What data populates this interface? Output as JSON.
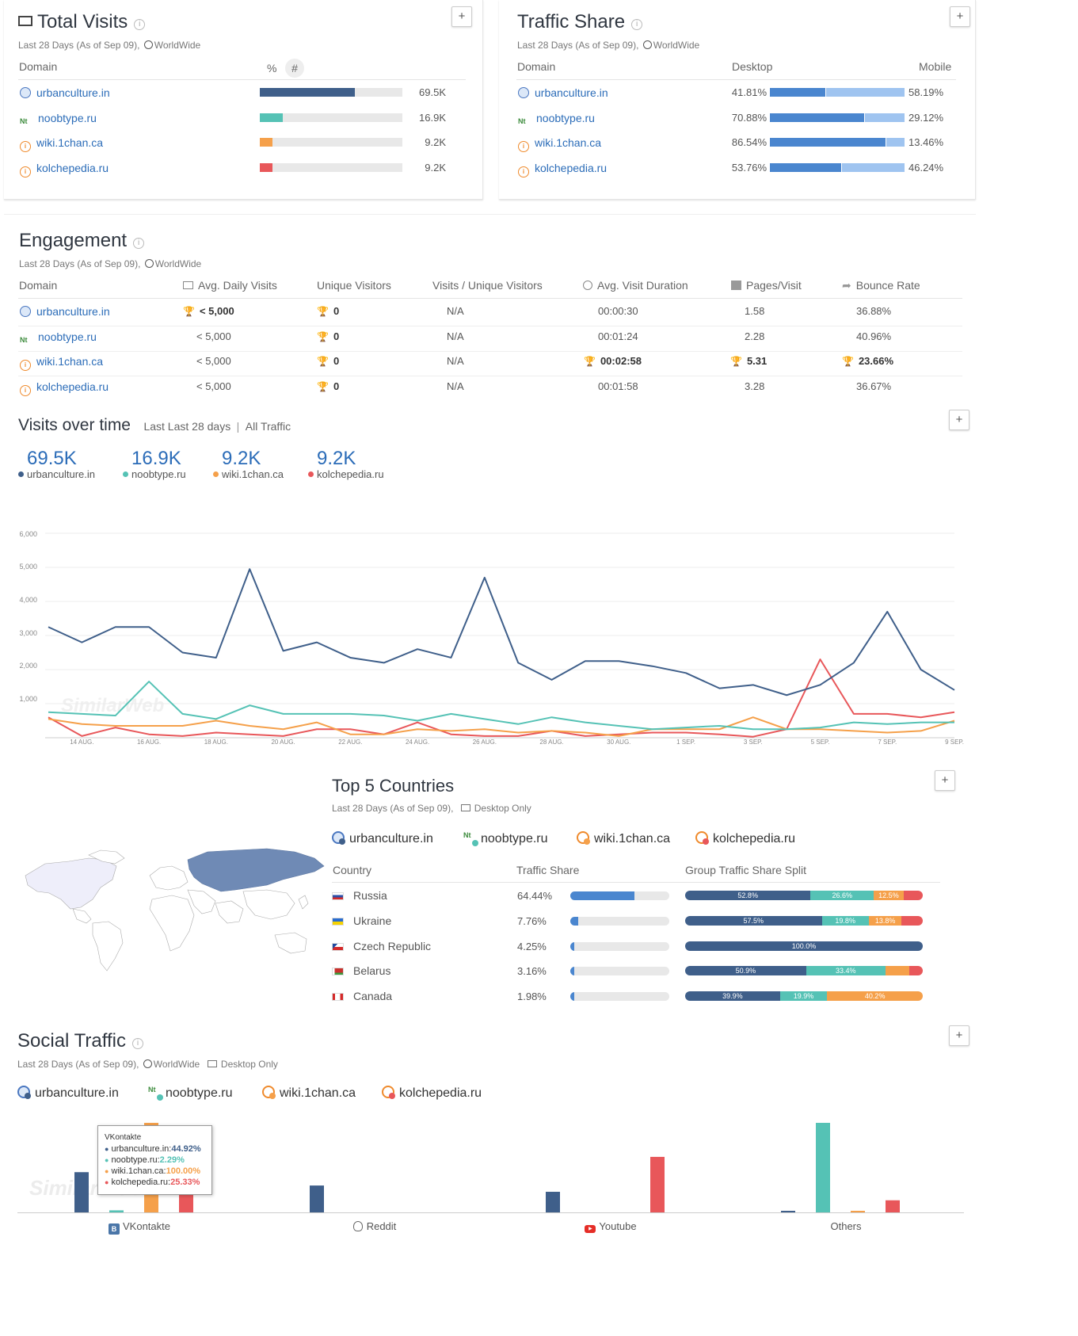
{
  "colors": {
    "urban": "#3f5f8a",
    "noob": "#55c2b5",
    "wiki": "#f5a04a",
    "kolche": "#e8575a",
    "desktop": "#4a86cf",
    "mobile": "#9fc4f0",
    "link": "#2b6cb8"
  },
  "total_visits": {
    "title": "Total Visits",
    "subtitle": "Last 28 Days (As of Sep 09),",
    "region": "WorldWide",
    "col_domain": "Domain",
    "col_pct": "%",
    "col_num": "#",
    "rows": [
      {
        "domain": "urbanculture.in",
        "value": "69.5K",
        "share": 0.667
      },
      {
        "domain": "noobtype.ru",
        "value": "16.9K",
        "share": 0.162
      },
      {
        "domain": "wiki.1chan.ca",
        "value": "9.2K",
        "share": 0.088
      },
      {
        "domain": "kolchepedia.ru",
        "value": "9.2K",
        "share": 0.088
      }
    ]
  },
  "traffic_share": {
    "title": "Traffic Share",
    "subtitle": "Last 28 Days (As of Sep 09),",
    "region": "WorldWide",
    "col_domain": "Domain",
    "col_desktop": "Desktop",
    "col_mobile": "Mobile",
    "rows": [
      {
        "domain": "urbanculture.in",
        "desktop": "41.81%",
        "mobile": "58.19%",
        "desktop_share": 0.4181
      },
      {
        "domain": "noobtype.ru",
        "desktop": "70.88%",
        "mobile": "29.12%",
        "desktop_share": 0.7088
      },
      {
        "domain": "wiki.1chan.ca",
        "desktop": "86.54%",
        "mobile": "13.46%",
        "desktop_share": 0.8654
      },
      {
        "domain": "kolchepedia.ru",
        "desktop": "53.76%",
        "mobile": "46.24%",
        "desktop_share": 0.5376
      }
    ]
  },
  "engagement": {
    "title": "Engagement",
    "subtitle": "Last 28 Days (As of Sep 09),",
    "region": "WorldWide",
    "cols": [
      "Domain",
      "Avg. Daily Visits",
      "Unique Visitors",
      "Visits / Unique Visitors",
      "Avg. Visit Duration",
      "Pages/Visit",
      "Bounce Rate"
    ],
    "rows": [
      {
        "domain": "urbanculture.in",
        "daily": "< 5,000",
        "unique": "0",
        "ratio": "N/A",
        "duration": "00:00:30",
        "pages": "1.58",
        "bounce": "36.88%"
      },
      {
        "domain": "noobtype.ru",
        "daily": "< 5,000",
        "unique": "0",
        "ratio": "N/A",
        "duration": "00:01:24",
        "pages": "2.28",
        "bounce": "40.96%"
      },
      {
        "domain": "wiki.1chan.ca",
        "daily": "< 5,000",
        "unique": "0",
        "ratio": "N/A",
        "duration": "00:02:58",
        "pages": "5.31",
        "bounce": "23.66%"
      },
      {
        "domain": "kolchepedia.ru",
        "daily": "< 5,000",
        "unique": "0",
        "ratio": "N/A",
        "duration": "00:01:58",
        "pages": "3.28",
        "bounce": "36.67%"
      }
    ]
  },
  "visits_over_time": {
    "title": "Visits over time",
    "period": "Last Last 28 days",
    "separator": "|",
    "traffic": "All Traffic",
    "totals": [
      {
        "value": "69.5K",
        "domain": "urbanculture.in"
      },
      {
        "value": "16.9K",
        "domain": "noobtype.ru"
      },
      {
        "value": "9.2K",
        "domain": "wiki.1chan.ca"
      },
      {
        "value": "9.2K",
        "domain": "kolchepedia.ru"
      }
    ],
    "watermark": "SimilarWeb"
  },
  "chart_data": [
    {
      "type": "line",
      "x": [
        "13 AUG",
        "14 AUG",
        "15 AUG",
        "16 AUG",
        "17 AUG",
        "18 AUG",
        "19 AUG",
        "20 AUG",
        "21 AUG",
        "22 AUG",
        "23 AUG",
        "24 AUG",
        "25 AUG",
        "26 AUG",
        "27 AUG",
        "28 AUG",
        "29 AUG",
        "30 AUG",
        "31 AUG",
        "1 SEP",
        "2 SEP",
        "3 SEP",
        "4 SEP",
        "5 SEP",
        "6 SEP",
        "7 SEP",
        "8 SEP",
        "9 SEP"
      ],
      "xticks": [
        "14 AUG.",
        "16 AUG.",
        "18 AUG.",
        "20 AUG.",
        "22 AUG.",
        "24 AUG.",
        "26 AUG.",
        "28 AUG.",
        "30 AUG.",
        "1 SEP.",
        "3 SEP.",
        "5 SEP.",
        "7 SEP.",
        "9 SEP."
      ],
      "yticks": [
        "6,000",
        "5,000",
        "4,000",
        "3,000",
        "2,000",
        "1,000"
      ],
      "ylim": [
        0,
        6000
      ],
      "series": [
        {
          "name": "urbanculture.in",
          "values": [
            3250,
            2800,
            3250,
            3250,
            2500,
            2350,
            4950,
            2550,
            2800,
            2350,
            2200,
            2600,
            2350,
            4700,
            2200,
            1700,
            2250,
            2250,
            2100,
            1900,
            1450,
            1550,
            1250,
            1550,
            2200,
            3700,
            2000,
            1400
          ]
        },
        {
          "name": "noobtype.ru",
          "values": [
            750,
            700,
            650,
            1650,
            700,
            550,
            950,
            700,
            700,
            700,
            650,
            500,
            700,
            550,
            400,
            600,
            450,
            350,
            250,
            300,
            350,
            250,
            250,
            300,
            450,
            400,
            450,
            450
          ]
        },
        {
          "name": "wiki.1chan.ca",
          "values": [
            550,
            400,
            350,
            350,
            350,
            500,
            350,
            250,
            450,
            100,
            100,
            250,
            200,
            250,
            150,
            200,
            150,
            50,
            250,
            250,
            250,
            600,
            250,
            250,
            200,
            150,
            200,
            500
          ]
        },
        {
          "name": "kolchepedia.ru",
          "values": [
            600,
            50,
            300,
            100,
            50,
            150,
            100,
            50,
            250,
            250,
            100,
            450,
            100,
            50,
            50,
            200,
            50,
            100,
            150,
            150,
            100,
            30,
            250,
            2300,
            700,
            700,
            600,
            750
          ]
        }
      ]
    },
    {
      "type": "bar",
      "categories": [
        "VKontakte",
        "Reddit",
        "Youtube",
        "Others"
      ],
      "series": [
        {
          "name": "urbanculture.in",
          "values": [
            44.92,
            30.0,
            23.0,
            1.5
          ]
        },
        {
          "name": "noobtype.ru",
          "values": [
            2.29,
            0,
            0,
            100.0
          ]
        },
        {
          "name": "wiki.1chan.ca",
          "values": [
            100.0,
            0,
            0,
            1.5
          ]
        },
        {
          "name": "kolchepedia.ru",
          "values": [
            25.33,
            0,
            62.0,
            13.5
          ]
        }
      ],
      "ylim": [
        0,
        100
      ]
    }
  ],
  "countries": {
    "title": "Top 5 Countries",
    "subtitle": "Last 28 Days (As of Sep 09),",
    "device": "Desktop Only",
    "domains": [
      "urbanculture.in",
      "noobtype.ru",
      "wiki.1chan.ca",
      "kolchepedia.ru"
    ],
    "col_country": "Country",
    "col_share": "Traffic Share",
    "col_split": "Group Traffic Share Split",
    "rows": [
      {
        "country": "Russia",
        "share": "64.44%",
        "share_frac": 0.6444,
        "split": [
          {
            "v": 52.8,
            "label": "52.8%"
          },
          {
            "v": 26.6,
            "label": "26.6%"
          },
          {
            "v": 12.5,
            "label": "12.5%"
          },
          {
            "v": 8.1,
            "label": ""
          }
        ]
      },
      {
        "country": "Ukraine",
        "share": "7.76%",
        "share_frac": 0.0776,
        "split": [
          {
            "v": 57.5,
            "label": "57.5%"
          },
          {
            "v": 19.8,
            "label": "19.8%"
          },
          {
            "v": 13.8,
            "label": "13.8%"
          },
          {
            "v": 8.9,
            "label": ""
          }
        ]
      },
      {
        "country": "Czech Republic",
        "share": "4.25%",
        "share_frac": 0.0425,
        "split": [
          {
            "v": 100,
            "label": "100.0%"
          },
          {
            "v": 0,
            "label": ""
          },
          {
            "v": 0,
            "label": ""
          },
          {
            "v": 0,
            "label": ""
          }
        ]
      },
      {
        "country": "Belarus",
        "share": "3.16%",
        "share_frac": 0.0316,
        "split": [
          {
            "v": 50.9,
            "label": "50.9%"
          },
          {
            "v": 33.4,
            "label": "33.4%"
          },
          {
            "v": 10.0,
            "label": ""
          },
          {
            "v": 5.7,
            "label": ""
          }
        ]
      },
      {
        "country": "Canada",
        "share": "1.98%",
        "share_frac": 0.0198,
        "split": [
          {
            "v": 39.9,
            "label": "39.9%"
          },
          {
            "v": 19.9,
            "label": "19.9%"
          },
          {
            "v": 40.2,
            "label": "40.2%"
          },
          {
            "v": 0,
            "label": ""
          }
        ]
      }
    ]
  },
  "social": {
    "title": "Social Traffic",
    "subtitle": "Last 28 Days (As of Sep 09),",
    "region": "WorldWide",
    "device": "Desktop Only",
    "domains": [
      "urbanculture.in",
      "noobtype.ru",
      "wiki.1chan.ca",
      "kolchepedia.ru"
    ],
    "tooltip": {
      "title": "VKontakte",
      "rows": [
        {
          "domain": "urbanculture.in:",
          "value": "44.92%"
        },
        {
          "domain": "noobtype.ru:",
          "value": "2.29%"
        },
        {
          "domain": "wiki.1chan.ca:",
          "value": "100.00%"
        },
        {
          "domain": "kolchepedia.ru:",
          "value": "25.33%"
        }
      ]
    },
    "watermark": "SimilarWeb"
  },
  "plus_label": "+"
}
